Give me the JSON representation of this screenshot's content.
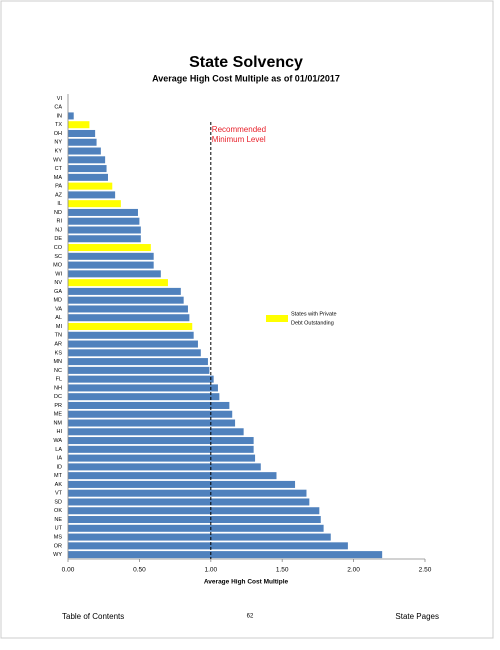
{
  "chart_data": {
    "type": "barh",
    "title": "State Solvency",
    "subtitle": "Average High Cost Multiple as of 01/01/2017",
    "x_label": "Average High Cost Multiple",
    "categories": [
      "VI",
      "CA",
      "IN",
      "TX",
      "OH",
      "NY",
      "KY",
      "WV",
      "CT",
      "MA",
      "PA",
      "AZ",
      "IL",
      "ND",
      "RI",
      "NJ",
      "DE",
      "CO",
      "SC",
      "MO",
      "WI",
      "NV",
      "GA",
      "MD",
      "VA",
      "AL",
      "MI",
      "TN",
      "AR",
      "KS",
      "MN",
      "NC",
      "FL",
      "NH",
      "DC",
      "PR",
      "ME",
      "NM",
      "HI",
      "WA",
      "LA",
      "IA",
      "ID",
      "MT",
      "AK",
      "VT",
      "SD",
      "OK",
      "NE",
      "UT",
      "MS",
      "OR",
      "WY"
    ],
    "values": [
      0,
      0,
      0.04,
      0.15,
      0.19,
      0.2,
      0.23,
      0.26,
      0.27,
      0.28,
      0.31,
      0.33,
      0.37,
      0.49,
      0.5,
      0.51,
      0.51,
      0.58,
      0.6,
      0.6,
      0.65,
      0.7,
      0.79,
      0.81,
      0.84,
      0.85,
      0.87,
      0.88,
      0.91,
      0.93,
      0.98,
      0.99,
      1.02,
      1.05,
      1.06,
      1.13,
      1.15,
      1.17,
      1.23,
      1.3,
      1.3,
      1.31,
      1.35,
      1.46,
      1.59,
      1.67,
      1.69,
      1.76,
      1.77,
      1.79,
      1.84,
      1.96,
      2.2
    ],
    "colors": [
      "#4f81bd",
      "#4f81bd",
      "#4f81bd",
      "#ffff00",
      "#4f81bd",
      "#4f81bd",
      "#4f81bd",
      "#4f81bd",
      "#4f81bd",
      "#4f81bd",
      "#ffff00",
      "#4f81bd",
      "#ffff00",
      "#4f81bd",
      "#4f81bd",
      "#4f81bd",
      "#4f81bd",
      "#ffff00",
      "#4f81bd",
      "#4f81bd",
      "#4f81bd",
      "#ffff00",
      "#4f81bd",
      "#4f81bd",
      "#4f81bd",
      "#4f81bd",
      "#ffff00",
      "#4f81bd",
      "#4f81bd",
      "#4f81bd",
      "#4f81bd",
      "#4f81bd",
      "#4f81bd",
      "#4f81bd",
      "#4f81bd",
      "#4f81bd",
      "#4f81bd",
      "#4f81bd",
      "#4f81bd",
      "#4f81bd",
      "#4f81bd",
      "#4f81bd",
      "#4f81bd",
      "#4f81bd",
      "#4f81bd",
      "#4f81bd",
      "#4f81bd",
      "#4f81bd",
      "#4f81bd",
      "#4f81bd",
      "#4f81bd",
      "#4f81bd",
      "#4f81bd"
    ],
    "xlim": [
      0,
      2.5
    ],
    "xticks": [
      {
        "value": 0,
        "label": "0.00"
      },
      {
        "value": 0.5,
        "label": "0.50"
      },
      {
        "value": 1,
        "label": "1.00"
      },
      {
        "value": 1.5,
        "label": "1.50"
      },
      {
        "value": 2,
        "label": "2.00"
      },
      {
        "value": 2.5,
        "label": "2.50"
      }
    ],
    "reference_line": {
      "value": 1,
      "label": [
        "Recommended",
        "Minimum Level"
      ],
      "color": "#e8202a"
    },
    "legend": {
      "label": [
        "States with Private",
        "Debt Outstanding"
      ],
      "color": "#ffff00"
    }
  },
  "footer": {
    "left": "Table of Contents",
    "page": "62",
    "right": "State Pages"
  }
}
